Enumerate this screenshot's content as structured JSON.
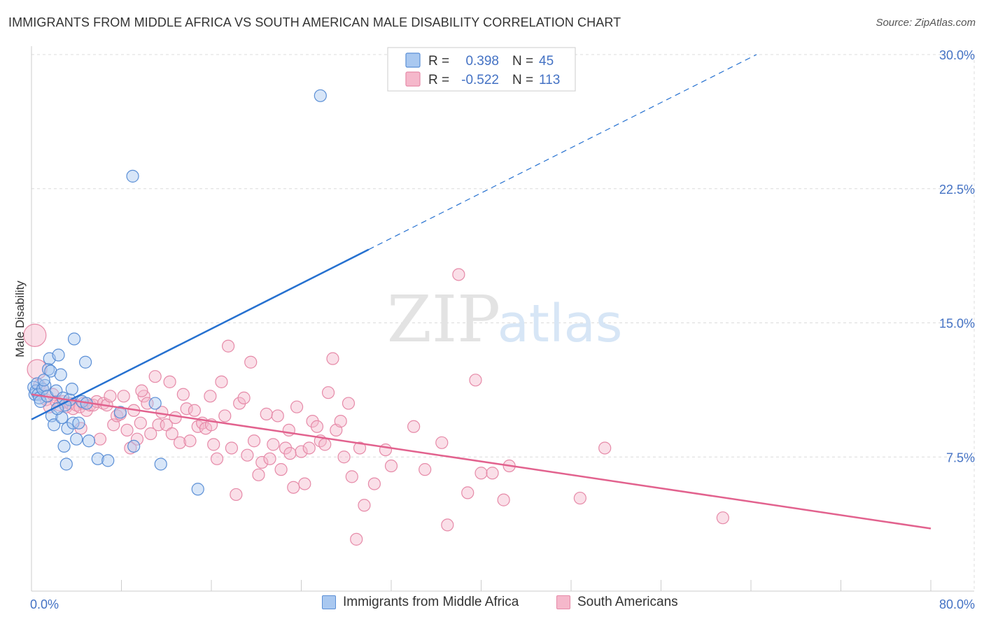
{
  "header": {
    "title": "IMMIGRANTS FROM MIDDLE AFRICA VS SOUTH AMERICAN MALE DISABILITY CORRELATION CHART",
    "source": "Source: ZipAtlas.com"
  },
  "watermark": {
    "zip": "ZIP",
    "atlas": "atlas"
  },
  "colors": {
    "blue_fill": "#a9c8f0",
    "blue_stroke": "#5b8fd6",
    "blue_line": "#2671d0",
    "pink_fill": "#f5b8cb",
    "pink_stroke": "#e68aa8",
    "pink_line": "#e2628e",
    "tick_label": "#4472c4",
    "grid": "#dcdcdc"
  },
  "legend_box": {
    "rows": [
      {
        "r_label": "R =",
        "r_value": "0.398",
        "n_label": "N =",
        "n_value": "45"
      },
      {
        "r_label": "R =",
        "r_value": "-0.522",
        "n_label": "N =",
        "n_value": "113"
      }
    ]
  },
  "chart_data": {
    "type": "scatter",
    "xlabel": "",
    "ylabel": "Male Disability",
    "xlim": [
      0,
      80
    ],
    "ylim": [
      0,
      30
    ],
    "x_tick_labels": [
      "0.0%",
      "80.0%"
    ],
    "y_ticks": [
      7.5,
      15.0,
      22.5,
      30.0
    ],
    "y_tick_labels": [
      "7.5%",
      "15.0%",
      "22.5%",
      "30.0%"
    ],
    "grid": "horizontal dashed",
    "legend_position": "top-center",
    "series": [
      {
        "name": "Immigrants from Middle Africa",
        "color": "#a9c8f0",
        "trend": {
          "x0": 0,
          "y0": 9.6,
          "x1": 30,
          "y1": 19.1,
          "x_end": 64.5,
          "y_end": 30.0
        },
        "points": [
          [
            0.2,
            11.4
          ],
          [
            0.3,
            11.0
          ],
          [
            0.4,
            11.2
          ],
          [
            0.5,
            11.6
          ],
          [
            0.6,
            11.0
          ],
          [
            0.7,
            10.8
          ],
          [
            0.8,
            10.6
          ],
          [
            1.0,
            11.3
          ],
          [
            1.2,
            11.5
          ],
          [
            1.4,
            10.9
          ],
          [
            1.5,
            12.4
          ],
          [
            1.6,
            13.0
          ],
          [
            1.7,
            12.3
          ],
          [
            1.8,
            9.8
          ],
          [
            2.0,
            9.3
          ],
          [
            2.2,
            11.2
          ],
          [
            2.4,
            13.2
          ],
          [
            2.6,
            12.1
          ],
          [
            2.7,
            9.7
          ],
          [
            2.8,
            10.8
          ],
          [
            2.9,
            8.1
          ],
          [
            3.1,
            7.1
          ],
          [
            3.2,
            9.1
          ],
          [
            3.4,
            10.7
          ],
          [
            3.6,
            11.3
          ],
          [
            3.7,
            9.4
          ],
          [
            3.8,
            14.1
          ],
          [
            4.0,
            8.5
          ],
          [
            4.2,
            9.4
          ],
          [
            4.5,
            10.6
          ],
          [
            4.8,
            12.8
          ],
          [
            4.9,
            10.5
          ],
          [
            5.1,
            8.4
          ],
          [
            5.9,
            7.4
          ],
          [
            6.8,
            7.3
          ],
          [
            7.9,
            10.0
          ],
          [
            9.0,
            23.2
          ],
          [
            9.1,
            8.1
          ],
          [
            11.0,
            10.5
          ],
          [
            11.5,
            7.1
          ],
          [
            14.8,
            5.7
          ],
          [
            25.7,
            27.7
          ],
          [
            3.0,
            10.4
          ],
          [
            1.1,
            11.8
          ],
          [
            2.3,
            10.2
          ]
        ]
      },
      {
        "name": "South Americans",
        "color": "#f5b8cb",
        "trend": {
          "x0": 0,
          "y0": 11.0,
          "x1": 80,
          "y1": 3.5
        },
        "points": [
          [
            0.3,
            14.3
          ],
          [
            0.5,
            12.4
          ],
          [
            0.7,
            11.5
          ],
          [
            1.0,
            11.3
          ],
          [
            1.3,
            10.7
          ],
          [
            1.6,
            10.3
          ],
          [
            1.9,
            11.0
          ],
          [
            2.2,
            10.6
          ],
          [
            2.5,
            10.4
          ],
          [
            2.8,
            10.6
          ],
          [
            3.1,
            10.3
          ],
          [
            3.4,
            10.5
          ],
          [
            3.7,
            10.2
          ],
          [
            4.0,
            10.4
          ],
          [
            4.3,
            10.3
          ],
          [
            4.6,
            10.5
          ],
          [
            4.9,
            10.1
          ],
          [
            5.2,
            10.4
          ],
          [
            5.5,
            10.4
          ],
          [
            5.8,
            10.6
          ],
          [
            6.1,
            8.5
          ],
          [
            6.4,
            10.5
          ],
          [
            6.7,
            10.4
          ],
          [
            7.0,
            10.9
          ],
          [
            7.3,
            9.3
          ],
          [
            7.6,
            9.8
          ],
          [
            7.9,
            9.9
          ],
          [
            8.2,
            10.9
          ],
          [
            8.5,
            9.0
          ],
          [
            8.8,
            8.0
          ],
          [
            9.1,
            10.1
          ],
          [
            9.4,
            8.5
          ],
          [
            9.7,
            9.4
          ],
          [
            10.0,
            10.9
          ],
          [
            10.3,
            10.5
          ],
          [
            10.6,
            8.8
          ],
          [
            11.0,
            12.0
          ],
          [
            11.3,
            9.3
          ],
          [
            11.6,
            10.0
          ],
          [
            12.0,
            9.3
          ],
          [
            12.3,
            11.7
          ],
          [
            12.5,
            8.8
          ],
          [
            12.8,
            9.7
          ],
          [
            13.2,
            8.3
          ],
          [
            13.5,
            11.0
          ],
          [
            13.8,
            10.2
          ],
          [
            14.1,
            8.4
          ],
          [
            14.5,
            10.1
          ],
          [
            14.8,
            9.2
          ],
          [
            15.2,
            9.4
          ],
          [
            15.5,
            9.1
          ],
          [
            15.9,
            10.9
          ],
          [
            16.2,
            8.2
          ],
          [
            16.5,
            7.4
          ],
          [
            16.9,
            11.7
          ],
          [
            17.2,
            9.8
          ],
          [
            17.5,
            13.7
          ],
          [
            17.8,
            8.0
          ],
          [
            18.2,
            5.4
          ],
          [
            18.5,
            10.5
          ],
          [
            18.9,
            10.8
          ],
          [
            19.2,
            7.6
          ],
          [
            19.5,
            12.8
          ],
          [
            19.8,
            8.4
          ],
          [
            20.2,
            6.5
          ],
          [
            20.5,
            7.2
          ],
          [
            20.9,
            9.9
          ],
          [
            21.2,
            7.4
          ],
          [
            21.5,
            8.2
          ],
          [
            21.9,
            9.8
          ],
          [
            22.2,
            6.8
          ],
          [
            22.6,
            8.0
          ],
          [
            22.9,
            9.0
          ],
          [
            23.3,
            5.8
          ],
          [
            23.6,
            10.3
          ],
          [
            24.0,
            7.8
          ],
          [
            24.3,
            6.0
          ],
          [
            24.7,
            8.0
          ],
          [
            25.0,
            9.5
          ],
          [
            25.4,
            9.2
          ],
          [
            25.7,
            8.4
          ],
          [
            26.1,
            8.2
          ],
          [
            26.4,
            11.1
          ],
          [
            26.8,
            13.0
          ],
          [
            27.1,
            9.0
          ],
          [
            27.5,
            9.5
          ],
          [
            27.8,
            7.5
          ],
          [
            28.2,
            10.5
          ],
          [
            28.5,
            6.4
          ],
          [
            28.9,
            2.9
          ],
          [
            29.2,
            8.0
          ],
          [
            29.6,
            4.8
          ],
          [
            30.5,
            6.0
          ],
          [
            31.5,
            7.9
          ],
          [
            32.0,
            7.0
          ],
          [
            34.0,
            9.2
          ],
          [
            35.0,
            6.8
          ],
          [
            36.5,
            8.3
          ],
          [
            37.0,
            3.7
          ],
          [
            38.0,
            17.7
          ],
          [
            38.8,
            5.5
          ],
          [
            39.5,
            11.8
          ],
          [
            40.0,
            6.6
          ],
          [
            41.0,
            6.6
          ],
          [
            42.0,
            5.1
          ],
          [
            42.5,
            7.0
          ],
          [
            48.8,
            5.2
          ],
          [
            51.0,
            8.0
          ],
          [
            61.5,
            4.1
          ],
          [
            16.0,
            9.3
          ],
          [
            23.0,
            7.7
          ],
          [
            9.8,
            11.2
          ],
          [
            4.4,
            9.1
          ]
        ]
      }
    ]
  }
}
